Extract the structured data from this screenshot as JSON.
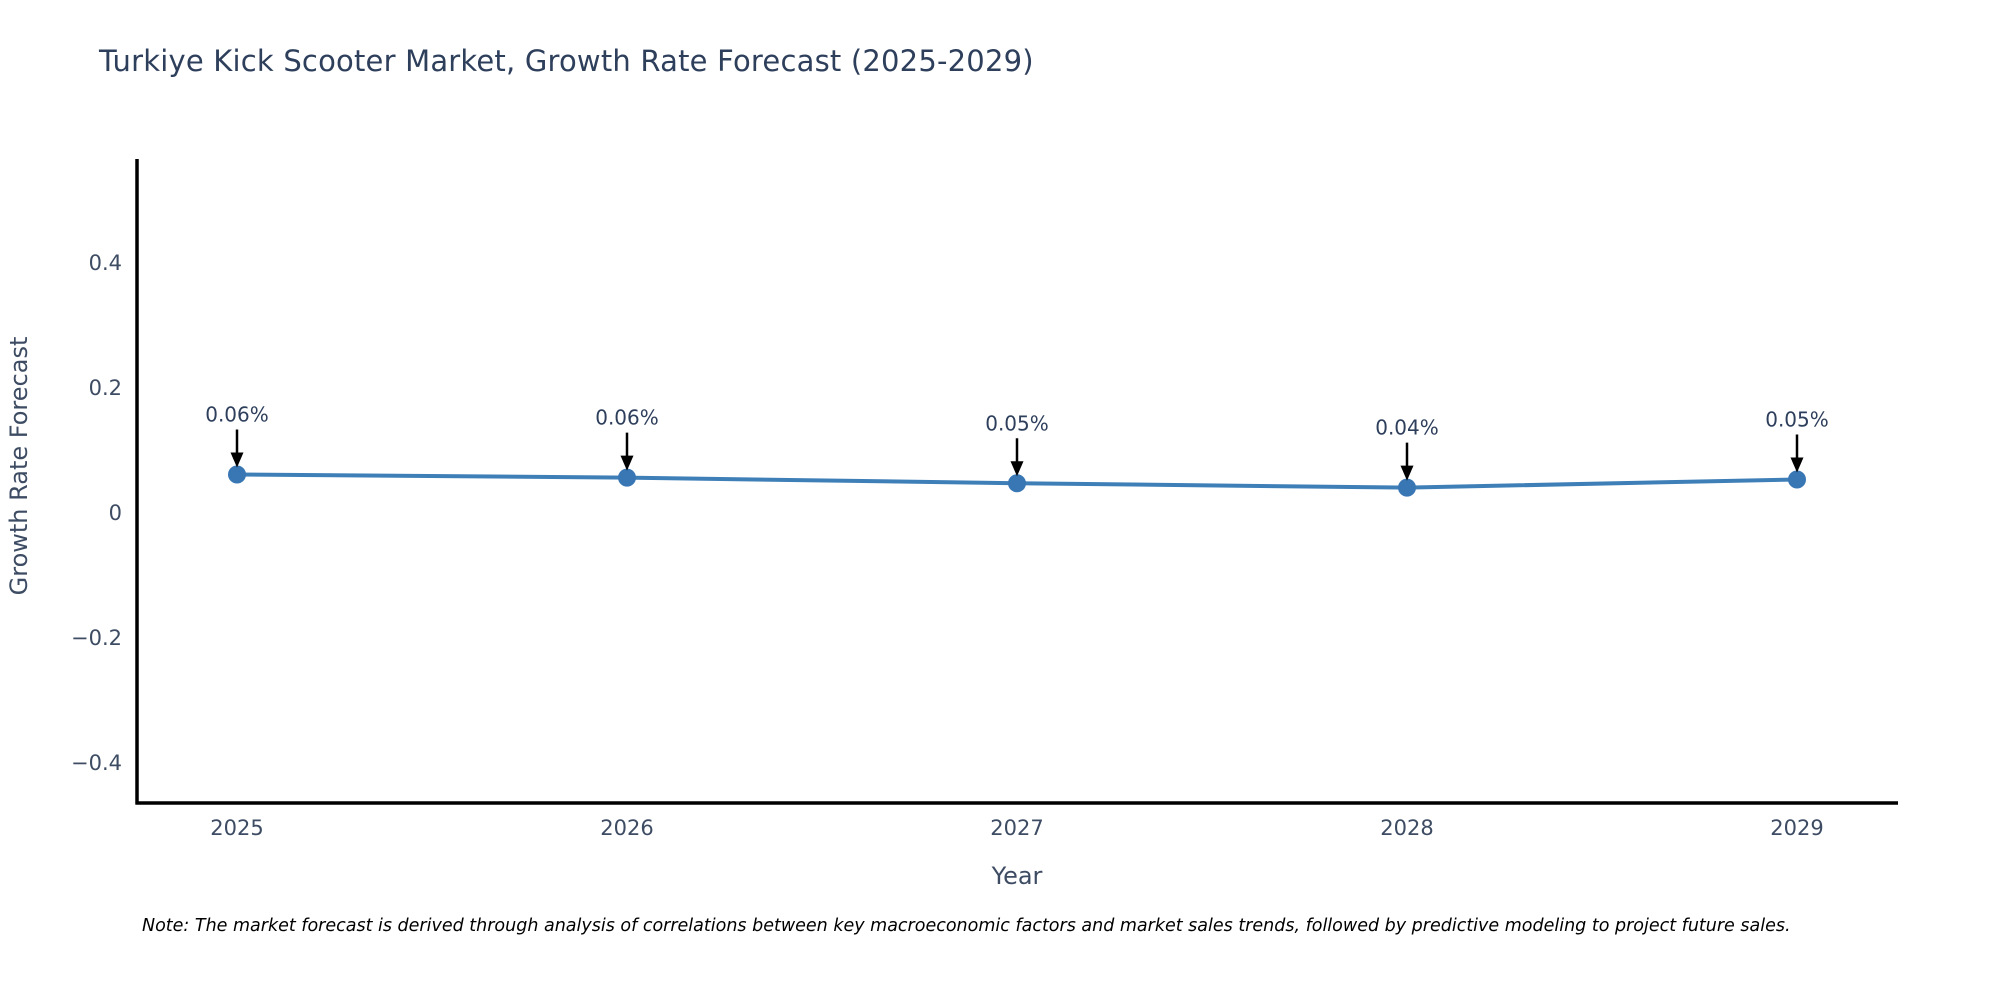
{
  "note": {
    "text": "Note: The market forecast is derived through analysis of correlations between key macroeconomic factors and market sales trends, followed by predictive modeling to project future sales."
  },
  "chart_data": {
    "type": "line",
    "title": "Turkiye Kick Scooter Market, Growth Rate Forecast (2025-2029)",
    "xlabel": "Year",
    "ylabel": "Growth Rate Forecast",
    "categories": [
      "2025",
      "2026",
      "2027",
      "2028",
      "2029"
    ],
    "values": [
      0.06,
      0.06,
      0.05,
      0.04,
      0.05
    ],
    "point_labels": [
      "0.06%",
      "0.06%",
      "0.05%",
      "0.04%",
      "0.05%"
    ],
    "plot_values": [
      0.06,
      0.055,
      0.046,
      0.039,
      0.052
    ],
    "yticks": [
      {
        "value": 0.4,
        "label": "0.4"
      },
      {
        "value": 0.2,
        "label": "0.2"
      },
      {
        "value": 0,
        "label": "0"
      },
      {
        "value": -0.2,
        "label": "−0.2"
      },
      {
        "value": -0.4,
        "label": "−0.4"
      }
    ],
    "ylim": [
      -0.466,
      0.565
    ],
    "grid": false,
    "legend": null,
    "annotation_arrows": true,
    "colors": {
      "line": "#3f7fb8",
      "marker": "#3876b4",
      "title_text": "#2e3f5c",
      "axis_text": "#3d4c63",
      "annotation_text": "#2e3f5c",
      "arrow": "#000000",
      "spine": "#000000"
    }
  }
}
